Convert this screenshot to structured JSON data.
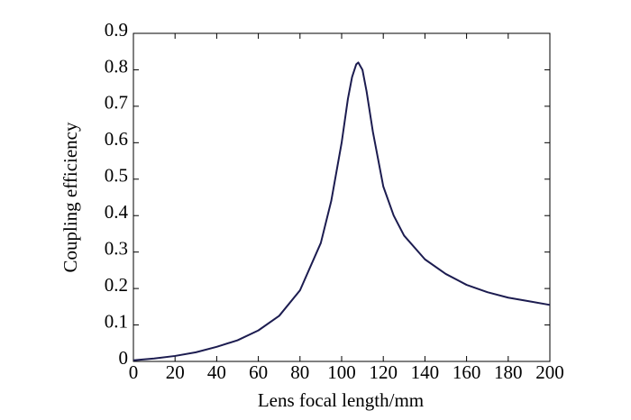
{
  "chart_data": {
    "type": "line",
    "xlabel": "Lens focal length/mm",
    "ylabel": "Coupling efficiency",
    "x": [
      0,
      10,
      20,
      30,
      40,
      50,
      60,
      70,
      80,
      90,
      95,
      100,
      103,
      105,
      107,
      108,
      110,
      112,
      115,
      120,
      125,
      130,
      140,
      150,
      160,
      170,
      180,
      190,
      200
    ],
    "series": [
      {
        "color": "#1c1c50",
        "values": [
          0.003,
          0.008,
          0.015,
          0.025,
          0.04,
          0.058,
          0.085,
          0.125,
          0.195,
          0.325,
          0.44,
          0.6,
          0.72,
          0.78,
          0.815,
          0.82,
          0.8,
          0.74,
          0.63,
          0.48,
          0.4,
          0.345,
          0.28,
          0.24,
          0.21,
          0.19,
          0.175,
          0.165,
          0.155
        ]
      }
    ],
    "xlim": [
      0,
      200
    ],
    "xticks": [
      0,
      20,
      40,
      60,
      80,
      100,
      120,
      140,
      160,
      180,
      200
    ],
    "ylim": [
      0,
      0.9
    ],
    "yticks": [
      0,
      0.1,
      0.2,
      0.3,
      0.4,
      0.5,
      0.6,
      0.7,
      0.8,
      0.9
    ]
  }
}
